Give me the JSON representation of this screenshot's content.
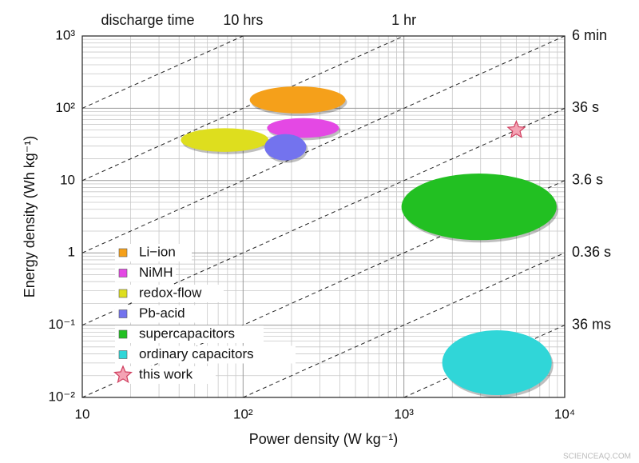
{
  "chart_data": {
    "type": "ragone",
    "header": "discharge time",
    "x_label": "Power density (W kg⁻¹)",
    "y_label": "Energy density (Wh kg⁻¹)",
    "log_x": true,
    "log_y": true,
    "grid": true,
    "xlim": [
      10,
      10000
    ],
    "ylim": [
      0.01,
      1000
    ],
    "xticks": [
      10,
      {
        "value": 100,
        "label": "10²"
      },
      {
        "value": 1000,
        "label": "10³"
      },
      {
        "value": 10000,
        "label": "10⁴"
      }
    ],
    "yticks": [
      {
        "value": 0.01,
        "label": "10⁻²"
      },
      {
        "value": 0.1,
        "label": "10⁻¹"
      },
      1,
      10,
      {
        "value": 100,
        "label": "10²"
      },
      {
        "value": 1000,
        "label": "10³"
      }
    ],
    "time_lines": [
      {
        "hours": 10,
        "label": "10 hrs"
      },
      {
        "hours": 1,
        "label": "1 hr"
      },
      {
        "hours": 0.1,
        "label": "6 min"
      },
      {
        "hours": 0.01,
        "label": "36 s"
      },
      {
        "hours": 0.001,
        "label": "3.6 s"
      },
      {
        "hours": 0.0001,
        "label": "0.36 s"
      },
      {
        "hours": 1e-05,
        "label": "36 ms"
      }
    ],
    "legend": "lower left",
    "series": [
      {
        "name": "Li−ion",
        "color": "#f5a01a",
        "x": [
          110,
          433
        ],
        "y": [
          85,
          201
        ]
      },
      {
        "name": "NiMH",
        "color": "#e448e4",
        "x": [
          141,
          395
        ],
        "y": [
          39,
          73
        ]
      },
      {
        "name": "redox-flow",
        "color": "#dede1e",
        "x": [
          41,
          144
        ],
        "y": [
          25,
          53
        ]
      },
      {
        "name": "Pb-acid",
        "color": "#7373ee",
        "x": [
          136,
          247
        ],
        "y": [
          19,
          44
        ]
      },
      {
        "name": "supercapacitors",
        "color": "#22c022",
        "x": [
          966,
          8900
        ],
        "y": [
          1.5,
          12.5
        ]
      },
      {
        "name": "ordinary capacitors",
        "color": "#30d6d8",
        "x": [
          1730,
          8300
        ],
        "y": [
          0.0108,
          0.085
        ]
      },
      {
        "name": "this work",
        "color": "#f4a3b4",
        "marker": "star",
        "x": 5000,
        "y": 50
      }
    ],
    "watermark": "SCIENCEAQ.COM"
  }
}
